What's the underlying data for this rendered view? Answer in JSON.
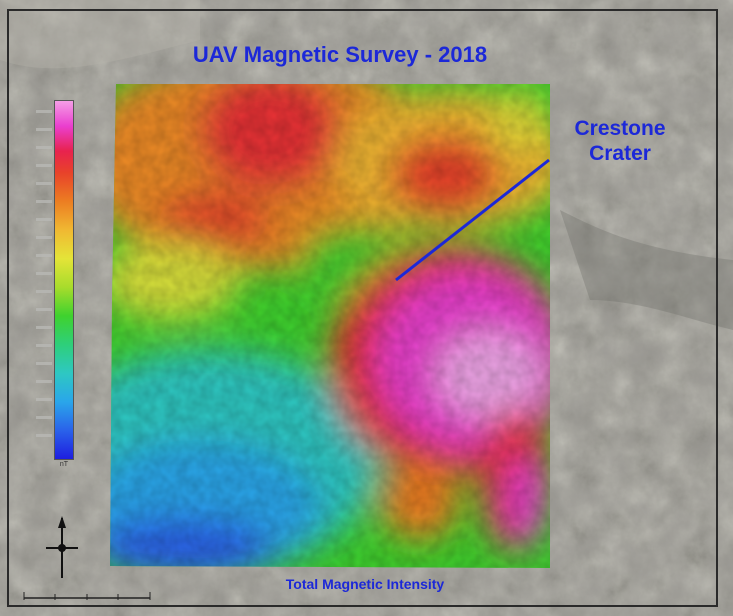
{
  "map": {
    "title": "UAV Magnetic Survey - 2018",
    "callout_label_line1": "Crestone",
    "callout_label_line2": "Crater",
    "caption": "Total Magnetic Intensity",
    "legend_unit": "nT",
    "colors": {
      "label_blue": "#1c28d8",
      "high": "#ea3fcf",
      "low": "#1e1ee0"
    },
    "icons": [
      "north-arrow-icon",
      "scale-bar"
    ]
  }
}
